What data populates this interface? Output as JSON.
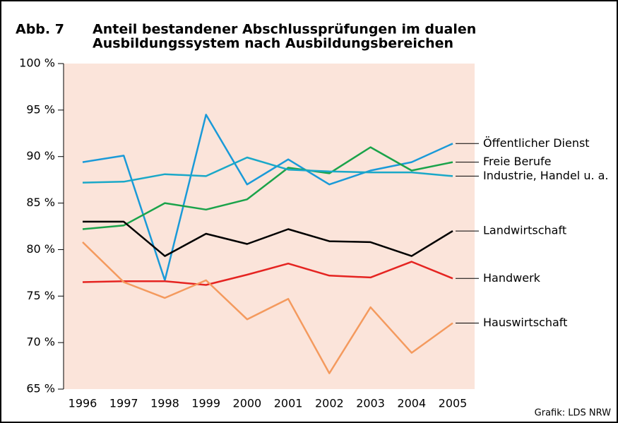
{
  "chart_data": {
    "type": "line",
    "figure_label": "Abb. 7",
    "title": [
      "Anteil bestandener Abschlussprüfungen im dualen",
      "Ausbildungssystem nach Ausbildungsbereichen"
    ],
    "source": "Grafik: LDS NRW",
    "categories": [
      "1996",
      "1997",
      "1998",
      "1999",
      "2000",
      "2001",
      "2002",
      "2003",
      "2004",
      "2005"
    ],
    "ylim": [
      65,
      100
    ],
    "yticks": [
      {
        "value": 65,
        "label": "65 %"
      },
      {
        "value": 70,
        "label": "70 %"
      },
      {
        "value": 75,
        "label": "75 %"
      },
      {
        "value": 80,
        "label": "80 %"
      },
      {
        "value": 85,
        "label": "85 %"
      },
      {
        "value": 90,
        "label": "90 %"
      },
      {
        "value": 95,
        "label": "95 %"
      },
      {
        "value": 100,
        "label": "100 %"
      }
    ],
    "background": "#fbe4da",
    "series": [
      {
        "name": "Öffentlicher Dienst",
        "color": "#1a9ad8",
        "values": [
          89.4,
          90.1,
          76.7,
          94.5,
          87.0,
          89.7,
          87.0,
          88.5,
          89.4,
          91.4
        ]
      },
      {
        "name": "Freie Berufe",
        "color": "#1aa34a",
        "values": [
          82.2,
          82.6,
          85.0,
          84.3,
          85.4,
          88.8,
          88.2,
          91.0,
          88.5,
          89.4
        ]
      },
      {
        "name": "Industrie, Handel u. a.",
        "color": "#1aa8c8",
        "values": [
          87.2,
          87.3,
          88.1,
          87.9,
          89.9,
          88.6,
          88.4,
          88.3,
          88.3,
          87.9
        ]
      },
      {
        "name": "Landwirtschaft",
        "color": "#000000",
        "values": [
          83.0,
          83.0,
          79.3,
          81.7,
          80.6,
          82.2,
          80.9,
          80.8,
          79.3,
          82.0
        ]
      },
      {
        "name": "Handwerk",
        "color": "#e52421",
        "values": [
          76.5,
          76.6,
          76.6,
          76.2,
          77.3,
          78.5,
          77.2,
          77.0,
          78.7,
          76.9
        ]
      },
      {
        "name": "Hauswirtschaft",
        "color": "#f49a5e",
        "values": [
          80.8,
          76.5,
          74.8,
          76.7,
          72.5,
          74.7,
          66.7,
          73.8,
          68.9,
          72.1
        ]
      }
    ]
  }
}
